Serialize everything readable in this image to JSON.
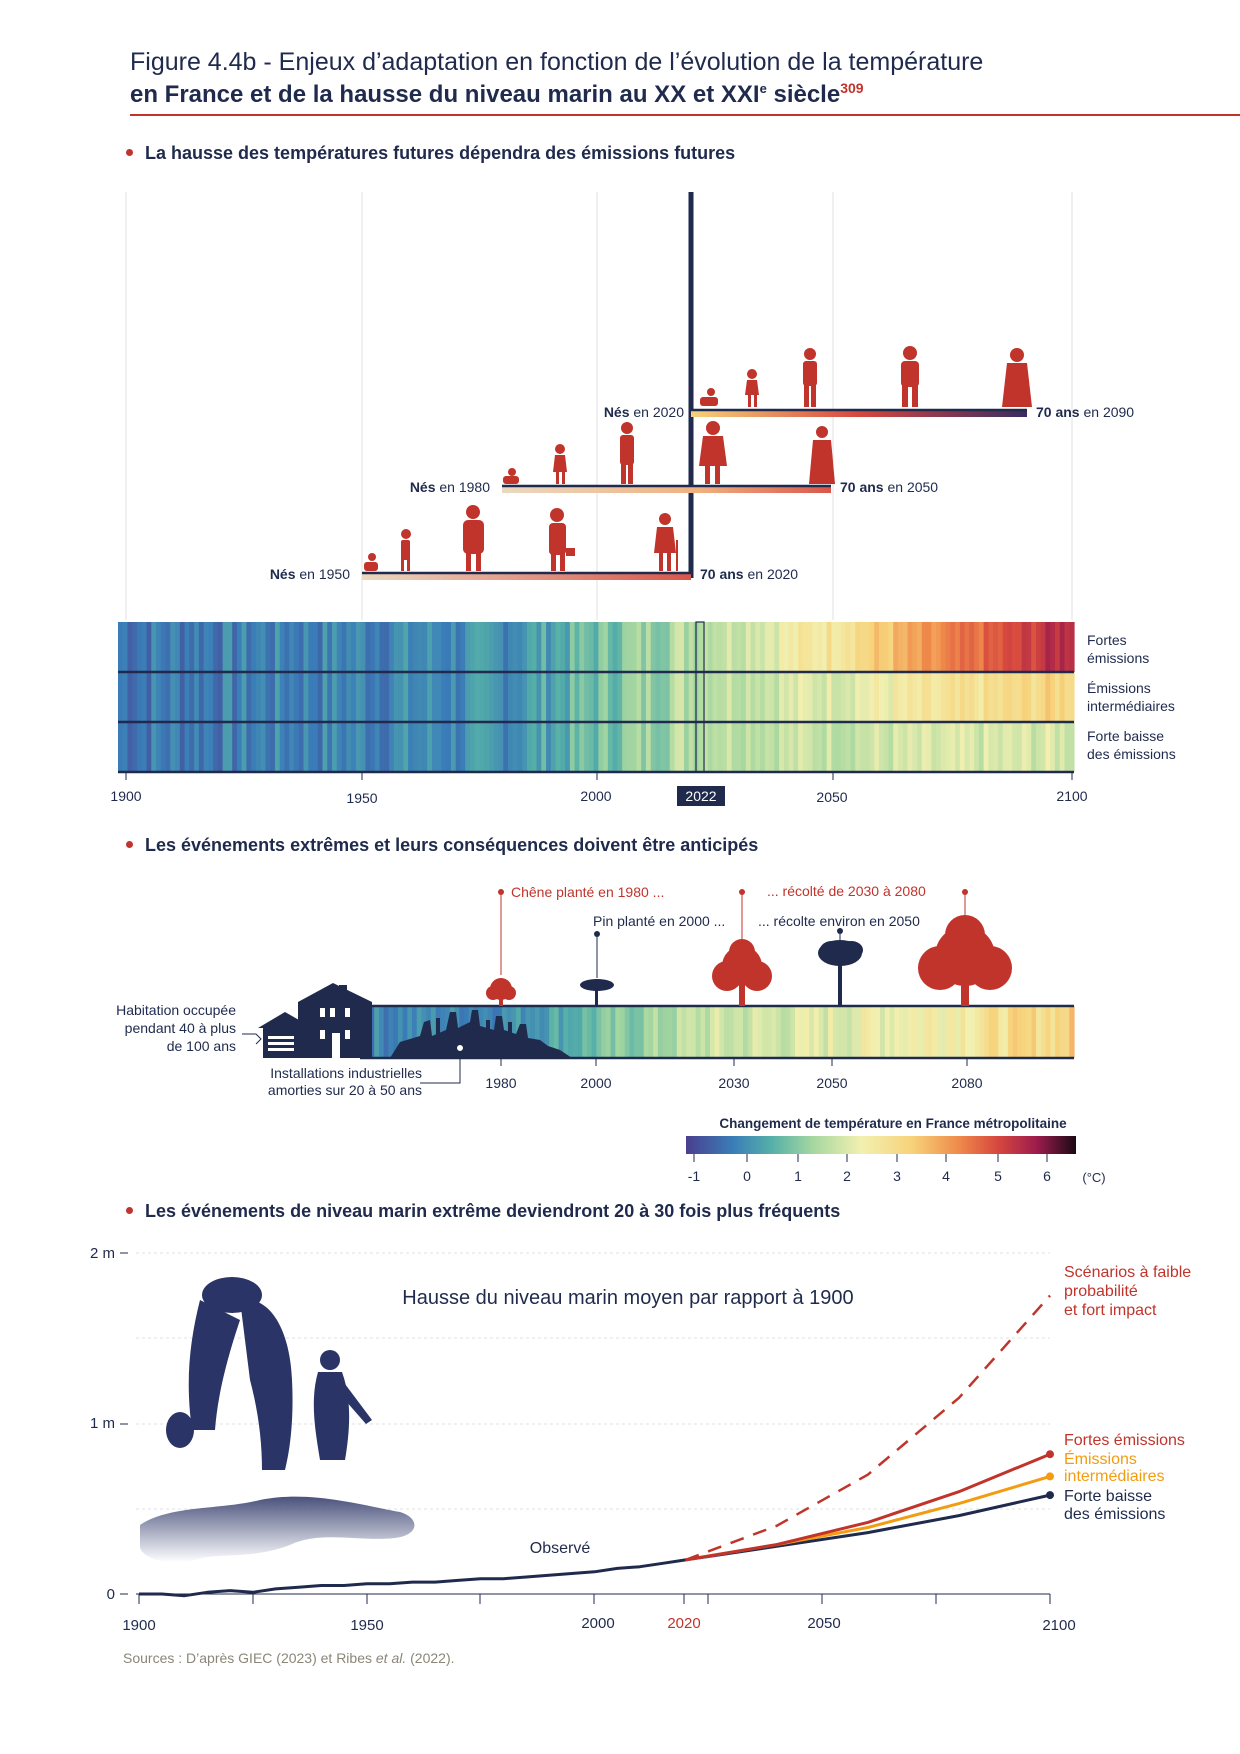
{
  "header": {
    "title_line1": "Figure 4.4b - Enjeux d’adaptation en fonction de l’évolution de la température",
    "title_line2_a": "en France et de la hausse du niveau marin au XX et XXI",
    "title_line2_sup": "e",
    "title_line2_b": " siècle",
    "footnote": "309"
  },
  "sections": {
    "s1": "La hausse des températures futures dépendra des émissions futures",
    "s2": "Les événements extrêmes et leurs conséquences doivent être anticipés",
    "s3": "Les événements de niveau marin extrême deviendront 20 à 30 fois plus fréquents"
  },
  "colors": {
    "navy": "#1f2a4d",
    "red": "#c0342b",
    "orange": "#f39c12",
    "source_gray": "#8a8678",
    "stripe_scale": [
      "#4a3f8f",
      "#3a7db8",
      "#56b0a8",
      "#a8d8a0",
      "#f2f0b0",
      "#f7d27a",
      "#ef8a4a",
      "#d6473f",
      "#9c1c4c",
      "#1a0a14"
    ]
  },
  "generations": [
    {
      "label_bold": "Nés",
      "label_rest": " en 1950",
      "end_bold": "70 ans",
      "end_rest": " en 2020",
      "start": 1950,
      "end": 2020
    },
    {
      "label_bold": "Nés",
      "label_rest": " en 1980",
      "end_bold": "70 ans",
      "end_rest": " en 2050",
      "start": 1980,
      "end": 2050
    },
    {
      "label_bold": "Nés",
      "label_rest": " en 2020",
      "end_bold": "70 ans",
      "end_rest": " en 2090",
      "start": 2020,
      "end": 2090
    }
  ],
  "chart_data": [
    {
      "type": "heatmap",
      "title": "La hausse des températures futures dépendra des émissions futures",
      "x_range": [
        1900,
        2100
      ],
      "x_ticks": [
        "1900",
        "1950",
        "2000",
        "2022",
        "2050",
        "2100"
      ],
      "highlight_year": "2022",
      "rows": [
        "Fortes émissions",
        "Émissions intermédiaires",
        "Forte baisse des émissions"
      ],
      "rows_display": [
        [
          "Fortes",
          "émissions"
        ],
        [
          "Émissions",
          "intermédiaires"
        ],
        [
          "Forte baisse",
          "des émissions"
        ]
      ],
      "end_temperature_c": [
        5.8,
        3.2,
        2.0
      ]
    },
    {
      "type": "heatmap",
      "title": "Les événements extrêmes et leurs conséquences doivent être anticipés",
      "x_ticks": [
        "1980",
        "2000",
        "2030",
        "2050",
        "2080"
      ],
      "annotations": [
        {
          "text": "Chêne planté en 1980 ...",
          "color": "red"
        },
        {
          "text": "... récolté de 2030 à 2080",
          "color": "red"
        },
        {
          "text": "Pin planté en 2000 ...",
          "color": "navy"
        },
        {
          "text": "... récolte environ en 2050",
          "color": "navy"
        },
        {
          "text": "Habitation occupée pendant 40 à plus de 100 ans",
          "lines": [
            "Habitation occupée",
            "pendant 40 à plus",
            "de 100 ans"
          ],
          "color": "navy"
        },
        {
          "text": "Installations industrielles amorties sur 20 à 50 ans",
          "lines": [
            "Installations industrielles",
            "amorties sur 20 à 50 ans"
          ],
          "color": "navy"
        }
      ],
      "colorbar": {
        "title": "Changement de température en France métropolitaine",
        "ticks": [
          "-1",
          "0",
          "1",
          "2",
          "3",
          "4",
          "5",
          "6"
        ],
        "unit": "(°C)"
      }
    },
    {
      "type": "line",
      "title": "Hausse du niveau marin moyen par rapport à 1900",
      "y_ticks": [
        "0",
        "1 m",
        "2 m"
      ],
      "ylim": [
        0,
        2
      ],
      "x_ticks": [
        "1900",
        "1950",
        "2000",
        "2020",
        "2050",
        "2100"
      ],
      "xlim": [
        1900,
        2100
      ],
      "observed_label": "Observé",
      "series": [
        {
          "name": "Observé",
          "x": [
            1900,
            1905,
            1910,
            1915,
            1920,
            1925,
            1930,
            1935,
            1940,
            1945,
            1950,
            1955,
            1960,
            1965,
            1970,
            1975,
            1980,
            1985,
            1990,
            1995,
            2000,
            2005,
            2010,
            2015,
            2020
          ],
          "y": [
            0.0,
            0.0,
            -0.01,
            0.01,
            0.02,
            0.01,
            0.03,
            0.04,
            0.05,
            0.05,
            0.06,
            0.06,
            0.07,
            0.07,
            0.08,
            0.09,
            0.09,
            0.1,
            0.11,
            0.12,
            0.13,
            0.15,
            0.16,
            0.18,
            0.2
          ]
        },
        {
          "name": "Scénarios à faible probabilité et fort impact",
          "x": [
            2020,
            2040,
            2060,
            2080,
            2100
          ],
          "y": [
            0.2,
            0.4,
            0.7,
            1.15,
            1.75
          ]
        },
        {
          "name": "Fortes émissions",
          "x": [
            2020,
            2040,
            2060,
            2080,
            2100
          ],
          "y": [
            0.2,
            0.29,
            0.42,
            0.6,
            0.82
          ]
        },
        {
          "name": "Émissions intermédiaires",
          "x": [
            2020,
            2040,
            2060,
            2080,
            2100
          ],
          "y": [
            0.2,
            0.29,
            0.39,
            0.53,
            0.69
          ]
        },
        {
          "name": "Forte baisse des émissions",
          "x": [
            2020,
            2040,
            2060,
            2080,
            2100
          ],
          "y": [
            0.2,
            0.28,
            0.36,
            0.46,
            0.58
          ]
        }
      ],
      "legend_display": {
        "low_prob": [
          "Scénarios à faible",
          "probabilité",
          "et fort impact"
        ],
        "high": [
          "Fortes émissions"
        ],
        "mid": [
          "Émissions",
          "intermédiaires"
        ],
        "low": [
          "Forte baisse",
          "des émissions"
        ]
      }
    }
  ],
  "sources": {
    "prefix": "Sources : D’après GIEC (2023) et Ribes ",
    "italic": "et al.",
    "suffix": " (2022)."
  }
}
